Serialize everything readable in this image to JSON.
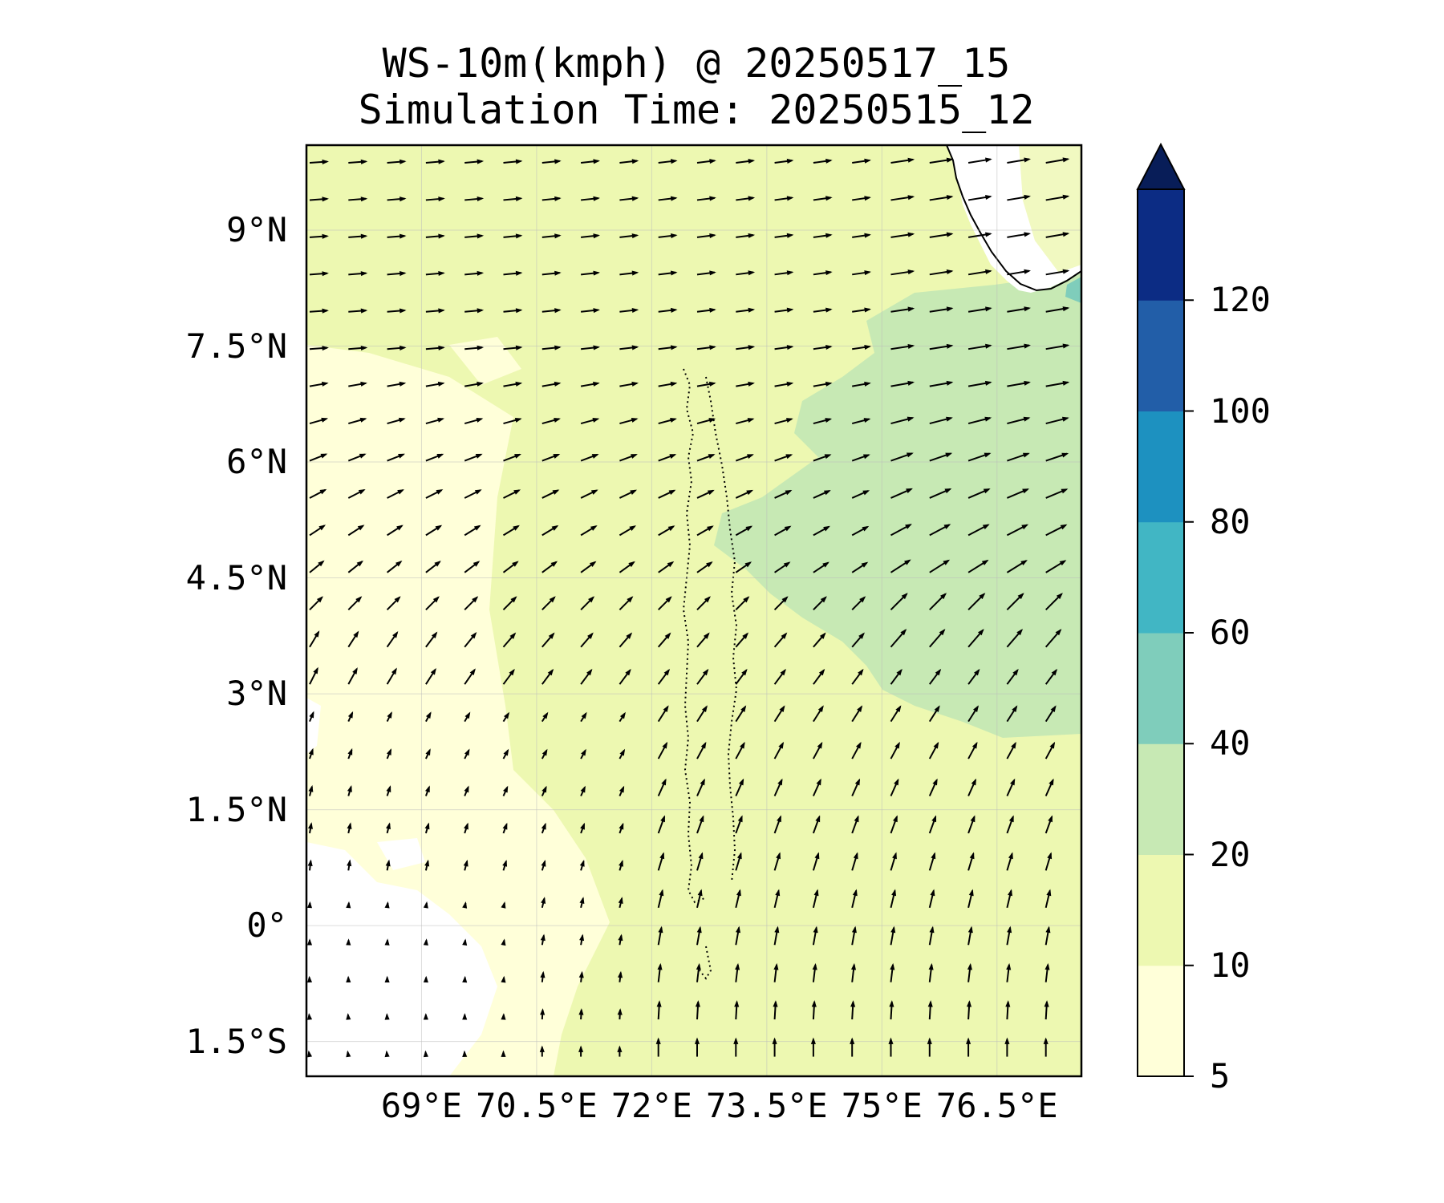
{
  "title": {
    "line1": "WS-10m(kmph) @ 20250517_15",
    "line2": "Simulation Time: 20250515_12"
  },
  "map": {
    "lon_range": [
      67.5,
      77.6
    ],
    "lat_range": [
      -1.95,
      10.1
    ],
    "x_tick_labels": [
      {
        "label": "69°E",
        "lon": 69.0
      },
      {
        "label": "70.5°E",
        "lon": 70.5
      },
      {
        "label": "72°E",
        "lon": 72.0
      },
      {
        "label": "73.5°E",
        "lon": 73.5
      },
      {
        "label": "75°E",
        "lon": 75.0
      },
      {
        "label": "76.5°E",
        "lon": 76.5
      }
    ],
    "y_tick_labels": [
      {
        "label": "9°N",
        "lat": 9.0
      },
      {
        "label": "7.5°N",
        "lat": 7.5
      },
      {
        "label": "6°N",
        "lat": 6.0
      },
      {
        "label": "4.5°N",
        "lat": 4.5
      },
      {
        "label": "3°N",
        "lat": 3.0
      },
      {
        "label": "1.5°N",
        "lat": 1.5
      },
      {
        "label": "0°",
        "lat": 0.0
      },
      {
        "label": "1.5°S",
        "lat": -1.5
      }
    ],
    "gridlines": true,
    "vector_field": "wind direction southwesterly-westerly in the north, turning southerly in the south; stronger winds (20-40 kmph) in the east"
  },
  "colorbar": {
    "levels": [
      5,
      10,
      20,
      40,
      60,
      80,
      100,
      120
    ],
    "tick_labels": [
      "5",
      "10",
      "20",
      "40",
      "60",
      "80",
      "100",
      "120"
    ],
    "colors": [
      "#ffffd9",
      "#edf8b1",
      "#c7e9b4",
      "#7fcdbb",
      "#41b6c4",
      "#1d91c0",
      "#225ea8",
      "#0c2c84"
    ],
    "extend_color": "#081d58",
    "extend": "max"
  },
  "colors": {
    "calm": "#ffffff",
    "low": "#ffffd9",
    "mid": "#edf8b1",
    "high": "#c7e9b4",
    "peak": "#7fcdbb",
    "arrow": "#000000"
  }
}
